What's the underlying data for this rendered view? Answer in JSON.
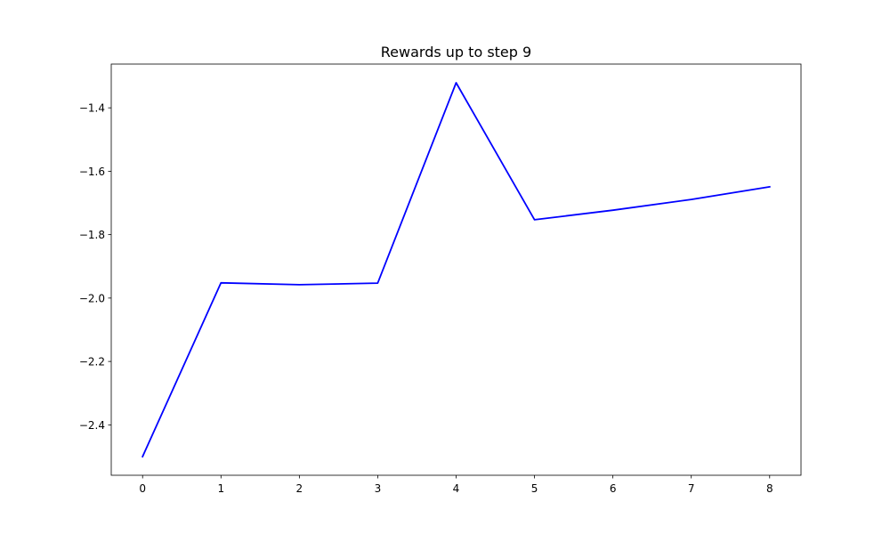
{
  "chart_data": {
    "type": "line",
    "title": "Rewards up to step 9",
    "xlabel": "",
    "ylabel": "",
    "xlim": [
      -0.4,
      8.4
    ],
    "ylim": [
      -2.559,
      -1.262
    ],
    "xticks": [
      0,
      1,
      2,
      3,
      4,
      5,
      6,
      7,
      8
    ],
    "xtick_labels": [
      "0",
      "1",
      "2",
      "3",
      "4",
      "5",
      "6",
      "7",
      "8"
    ],
    "yticks": [
      -2.4,
      -2.2,
      -2.0,
      -1.8,
      -1.6,
      -1.4
    ],
    "ytick_labels": [
      "−2.4",
      "−2.2",
      "−2.0",
      "−1.8",
      "−1.6",
      "−1.4"
    ],
    "grid": false,
    "x": [
      0,
      1,
      2,
      3,
      4,
      5,
      6,
      7,
      8
    ],
    "series": [
      {
        "values": [
          -2.5,
          -1.952,
          -1.958,
          -1.953,
          -1.321,
          -1.753,
          -1.723,
          -1.689,
          -1.649
        ],
        "color": "#0000ff"
      }
    ]
  }
}
